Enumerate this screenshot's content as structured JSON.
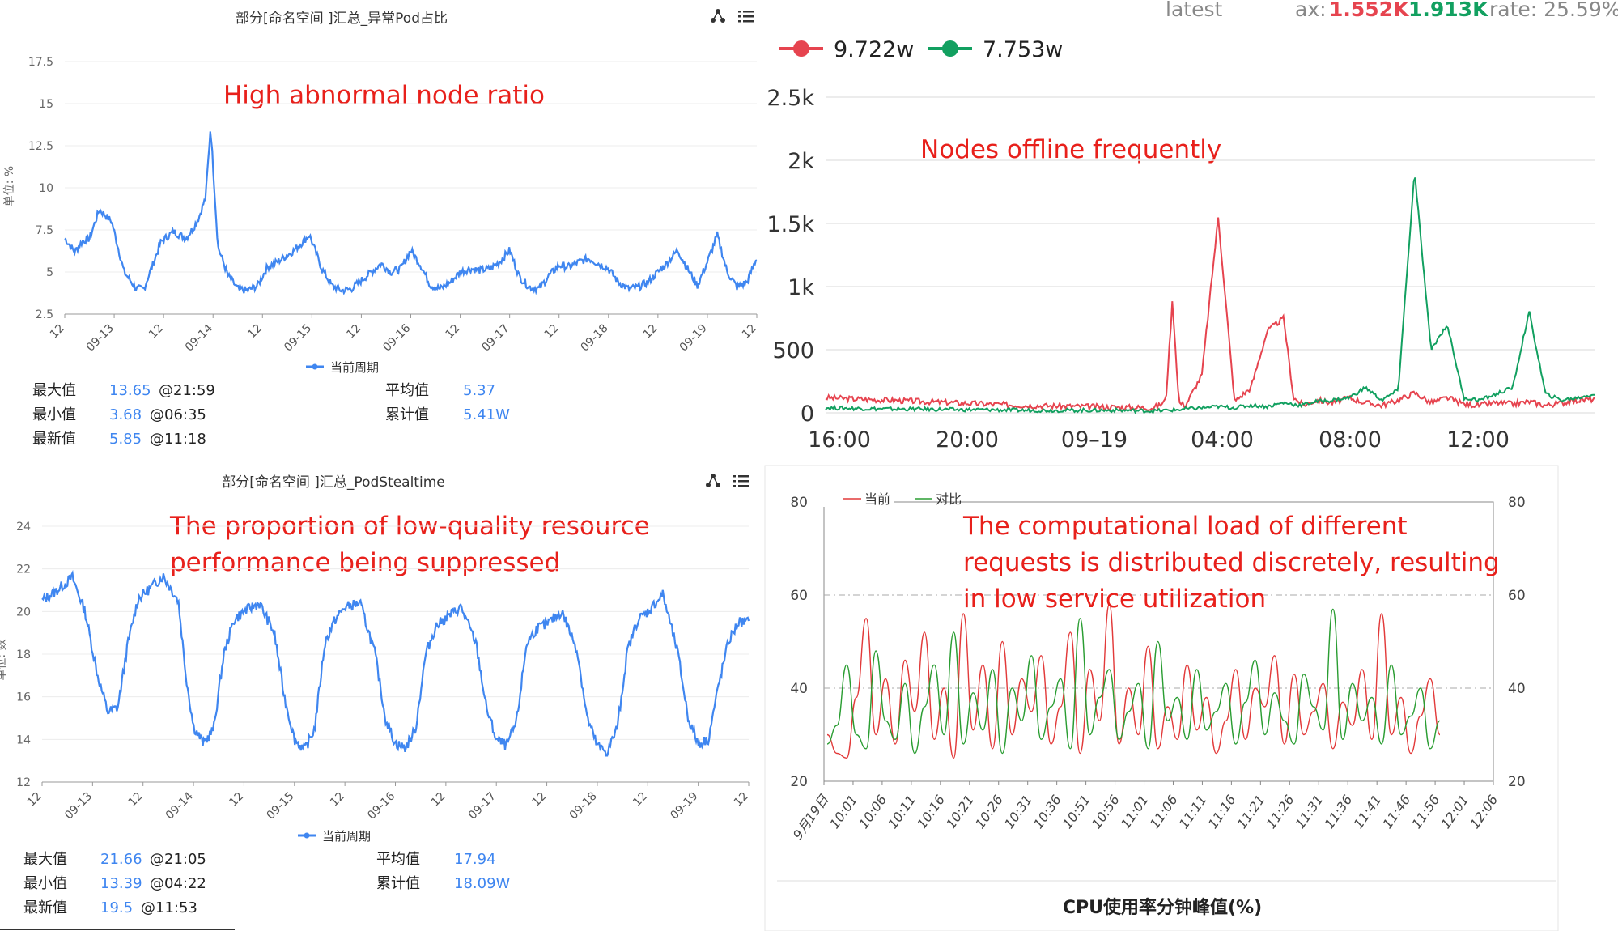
{
  "colors": {
    "blue": "#3f86f0",
    "red": "#e6444f",
    "green": "#12a060",
    "annotation": "#e8201b",
    "cmp_red": "#e23a3a",
    "cmp_green": "#2a9d32"
  },
  "panel_tl": {
    "title": "部分[命名空间 ]汇总_异常Pod占比",
    "ylabel": "单位: %",
    "annotation": "High abnormal node ratio",
    "legend": "当前周期",
    "stats": [
      {
        "label": "最大值",
        "value": "13.65",
        "extra": "@21:59"
      },
      {
        "label": "平均值",
        "value": "5.37",
        "extra": ""
      },
      {
        "label": "最小值",
        "value": "3.68",
        "extra": "@06:35"
      },
      {
        "label": "累计值",
        "value": "5.41W",
        "extra": ""
      },
      {
        "label": "最新值",
        "value": "5.85",
        "extra": "@11:18"
      }
    ]
  },
  "panel_bl": {
    "title": "部分[命名空间 ]汇总_PodStealtime",
    "ylabel": "单位: 数",
    "annotation_lines": [
      "The proportion of low-quality resource",
      "performance being suppressed"
    ],
    "legend": "当前周期",
    "stats": [
      {
        "label": "最大值",
        "value": "21.66",
        "extra": "@21:05"
      },
      {
        "label": "平均值",
        "value": "17.94",
        "extra": ""
      },
      {
        "label": "最小值",
        "value": "13.39",
        "extra": "@04:22"
      },
      {
        "label": "累计值",
        "value": "18.09W",
        "extra": ""
      },
      {
        "label": "最新值",
        "value": "19.5",
        "extra": "@11:53"
      }
    ]
  },
  "panel_tr": {
    "header": "ax: 1.552K  1.913K   rate: 25.59%",
    "header_parts": [
      {
        "text": "latest",
        "color": "#888888"
      },
      {
        "text": "ax:",
        "color": "#888888"
      },
      {
        "text": "1.552K",
        "color": "#e6444f"
      },
      {
        "text": "1.913K",
        "color": "#12a060"
      },
      {
        "text": "rate: 25.59%",
        "color": "#888888"
      }
    ],
    "legend": [
      {
        "name": "9.722w",
        "color": "#e6444f"
      },
      {
        "name": "7.753w",
        "color": "#12a060"
      }
    ],
    "annotation": "Nodes offline frequently"
  },
  "panel_br": {
    "legend": [
      {
        "name": "当前",
        "color": "#e23a3a"
      },
      {
        "name": "对比",
        "color": "#2a9d32"
      }
    ],
    "annotation_lines": [
      "The computational load of different",
      "requests is distributed discretely, resulting",
      "in low service utilization"
    ],
    "footer": "CPU使用率分钟峰值(%)"
  },
  "chart_data": [
    {
      "type": "line",
      "title": "部分[命名空间 ]汇总_异常Pod占比",
      "ylabel": "单位: %",
      "ylim": [
        2.5,
        17.5
      ],
      "yticks": [
        "2.5",
        "5",
        "7.5",
        "10",
        "12.5",
        "15",
        "17.5"
      ],
      "xticks": [
        "12",
        "09-13",
        "12",
        "09-14",
        "12",
        "09-15",
        "12",
        "09-16",
        "12",
        "09-17",
        "12",
        "09-18",
        "12",
        "09-19",
        "12"
      ],
      "grid": true,
      "series": [
        {
          "name": "当前周期",
          "x": [
            0,
            0.2,
            0.35,
            0.5,
            0.7,
            0.95,
            1.2,
            1.45,
            1.6,
            1.75,
            1.95,
            2.2,
            2.45,
            2.6,
            2.72,
            2.8,
            2.85,
            2.95,
            3.1,
            3.3,
            3.5,
            3.7,
            3.9,
            4.1,
            4.3,
            4.5,
            4.6,
            4.75,
            4.95,
            5.2,
            5.4,
            5.6,
            5.8,
            6.0,
            6.2,
            6.4,
            6.6,
            6.8,
            7.0,
            7.2,
            7.4,
            7.6,
            7.8,
            8.0,
            8.2,
            8.4,
            8.6,
            8.8,
            9.0,
            9.2,
            9.4,
            9.6,
            9.8,
            10.0,
            10.2,
            10.4,
            10.6,
            10.8,
            11.0,
            11.2,
            11.4,
            11.6,
            11.8,
            12.0,
            12.2,
            12.4,
            12.6,
            12.8,
            13.0,
            13.2,
            13.4,
            13.6,
            13.8,
            14.0
          ],
          "y": [
            7.0,
            6.2,
            6.8,
            7.0,
            8.7,
            8.0,
            5.0,
            4.0,
            4.0,
            5.2,
            6.8,
            7.4,
            7.0,
            7.6,
            8.3,
            9.0,
            9.4,
            13.65,
            6.5,
            4.8,
            4.0,
            3.9,
            4.2,
            5.3,
            5.6,
            6.0,
            6.2,
            6.6,
            7.2,
            5.2,
            4.2,
            3.9,
            4.0,
            4.5,
            5.0,
            5.5,
            5.0,
            5.2,
            6.3,
            5.4,
            4.2,
            4.0,
            4.4,
            5.0,
            5.2,
            5.1,
            5.2,
            5.6,
            6.3,
            4.7,
            4.1,
            4.0,
            4.8,
            5.4,
            5.3,
            5.6,
            5.8,
            5.5,
            5.2,
            4.4,
            4.0,
            4.1,
            4.4,
            5.0,
            5.6,
            6.3,
            5.2,
            4.2,
            5.6,
            7.2,
            5.0,
            4.1,
            4.4,
            5.85
          ]
        }
      ]
    },
    {
      "type": "line",
      "title": "部分[命名空间 ]汇总_PodStealtime",
      "ylabel": "单位: 数",
      "ylim": [
        12,
        24
      ],
      "yticks": [
        "12",
        "14",
        "16",
        "18",
        "20",
        "22",
        "24"
      ],
      "xticks": [
        "12",
        "09-13",
        "12",
        "09-14",
        "12",
        "09-15",
        "12",
        "09-16",
        "12",
        "09-17",
        "12",
        "09-18",
        "12",
        "09-19",
        "12"
      ],
      "grid": true,
      "series": [
        {
          "name": "当前周期",
          "x": [
            0,
            0.3,
            0.6,
            0.85,
            1.1,
            1.3,
            1.5,
            1.7,
            1.9,
            2.1,
            2.4,
            2.7,
            2.85,
            3.0,
            3.2,
            3.4,
            3.6,
            3.8,
            4.0,
            4.3,
            4.6,
            4.8,
            5.0,
            5.2,
            5.4,
            5.6,
            5.8,
            6.0,
            6.3,
            6.6,
            6.8,
            7.0,
            7.2,
            7.4,
            7.6,
            7.8,
            8.0,
            8.3,
            8.6,
            8.8,
            9.0,
            9.2,
            9.4,
            9.6,
            9.8,
            10.0,
            10.3,
            10.6,
            10.8,
            11.0,
            11.2,
            11.4,
            11.6,
            11.8,
            12.0,
            12.3,
            12.6,
            12.8,
            13.0,
            13.2,
            13.4,
            13.6,
            13.8,
            14.0
          ],
          "y": [
            20.5,
            21.0,
            21.6,
            20.0,
            17.0,
            15.3,
            15.5,
            18.5,
            20.6,
            21.0,
            21.66,
            20.5,
            17.0,
            14.6,
            13.8,
            14.5,
            18.0,
            19.6,
            20.0,
            20.4,
            19.0,
            16.0,
            14.0,
            13.5,
            14.5,
            18.5,
            19.6,
            20.2,
            20.4,
            18.0,
            15.0,
            13.8,
            13.6,
            14.5,
            18.0,
            19.3,
            19.7,
            20.2,
            18.5,
            15.5,
            14.0,
            13.7,
            14.8,
            18.5,
            19.2,
            19.4,
            20.0,
            18.2,
            15.0,
            13.7,
            13.39,
            14.6,
            18.2,
            19.6,
            20.0,
            20.8,
            18.0,
            15.0,
            13.8,
            14.0,
            16.5,
            18.6,
            19.5,
            19.5
          ]
        }
      ]
    },
    {
      "type": "line",
      "legend": [
        "9.722w",
        "7.753w"
      ],
      "ylim": [
        0,
        2500
      ],
      "yticks": [
        "0",
        "500",
        "1k",
        "1.5k",
        "2k",
        "2.5k"
      ],
      "xticks": [
        "16:00",
        "20:00",
        "09–19",
        "04:00",
        "08:00",
        "12:00"
      ],
      "grid": true,
      "series": [
        {
          "name": "9.722w",
          "x": [
            0,
            1,
            2,
            3,
            4,
            5,
            6,
            7,
            8,
            9,
            10,
            10.2,
            10.4,
            10.6,
            10.8,
            11,
            11.5,
            12,
            12.5,
            13,
            13.5,
            14,
            14.3,
            14.6,
            15,
            15.5,
            16,
            16.5,
            17,
            17.5,
            18,
            18.5,
            19,
            19.5,
            20,
            20.5,
            21,
            21.5,
            22,
            22.5,
            23,
            23.5
          ],
          "y": [
            120,
            110,
            100,
            90,
            80,
            70,
            60,
            55,
            50,
            45,
            40,
            60,
            100,
            890,
            80,
            60,
            300,
            1550,
            90,
            200,
            650,
            750,
            120,
            60,
            100,
            80,
            120,
            80,
            60,
            100,
            160,
            80,
            120,
            70,
            60,
            80,
            70,
            90,
            60,
            80,
            100,
            110
          ]
        },
        {
          "name": "7.753w",
          "x": [
            0,
            1,
            2,
            3,
            4,
            5,
            6,
            7,
            8,
            9,
            10,
            10.5,
            11,
            11.5,
            12,
            12.5,
            13,
            13.5,
            14,
            14.5,
            15,
            15.5,
            16,
            16.5,
            17,
            17.5,
            18,
            18.5,
            19,
            19.5,
            20,
            20.5,
            21,
            21.5,
            22,
            22.5,
            23,
            23.5
          ],
          "y": [
            40,
            35,
            30,
            30,
            25,
            25,
            20,
            20,
            20,
            20,
            15,
            20,
            30,
            40,
            50,
            40,
            60,
            50,
            80,
            60,
            90,
            100,
            120,
            200,
            100,
            180,
            1913,
            500,
            700,
            120,
            100,
            150,
            200,
            800,
            150,
            100,
            120,
            150
          ]
        }
      ]
    },
    {
      "type": "line",
      "legend": [
        "当前",
        "对比"
      ],
      "ylim": [
        20,
        80
      ],
      "yticks": [
        "20",
        "40",
        "60",
        "80"
      ],
      "xticks": [
        "9月19日",
        "10:01",
        "10:06",
        "10:11",
        "10:16",
        "10:21",
        "10:26",
        "10:31",
        "10:36",
        "10:51",
        "10:56",
        "11:01",
        "11:06",
        "11:11",
        "11:16",
        "11:21",
        "11:26",
        "11:31",
        "11:36",
        "11:41",
        "11:46",
        "11:56",
        "12:01",
        "12:06"
      ],
      "grid": true,
      "series": [
        {
          "name": "当前",
          "y": [
            30,
            26,
            25,
            38,
            55,
            30,
            42,
            28,
            46,
            35,
            52,
            29,
            40,
            25,
            56,
            31,
            45,
            27,
            50,
            30,
            42,
            35,
            47,
            28,
            36,
            52,
            26,
            44,
            33,
            58,
            28,
            40,
            30,
            49,
            27,
            36,
            29,
            45,
            31,
            38,
            26,
            33,
            44,
            29,
            40,
            36,
            47,
            28,
            43,
            30,
            35,
            41,
            27,
            37,
            32,
            44,
            29,
            56,
            30,
            38,
            26,
            34,
            42,
            30
          ]
        },
        {
          "name": "对比",
          "y": [
            28,
            32,
            45,
            30,
            27,
            48,
            33,
            29,
            41,
            26,
            36,
            45,
            30,
            52,
            28,
            39,
            31,
            44,
            26,
            40,
            33,
            47,
            29,
            36,
            42,
            27,
            55,
            30,
            38,
            44,
            29,
            35,
            41,
            27,
            50,
            33,
            38,
            29,
            44,
            31,
            35,
            41,
            28,
            37,
            46,
            30,
            39,
            33,
            28,
            43,
            36,
            31,
            57,
            29,
            41,
            33,
            38,
            28,
            45,
            30,
            34,
            40,
            27,
            33
          ]
        }
      ]
    }
  ]
}
